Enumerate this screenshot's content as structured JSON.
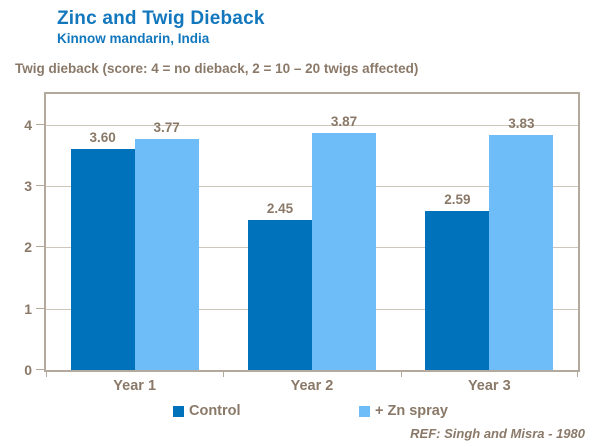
{
  "header": {
    "title": "Zinc and Twig Dieback",
    "subtitle": "Kinnow mandarin, India"
  },
  "axis_caption": "Twig dieback (score: 4 = no dieback, 2 = 10 – 20 twigs affected)",
  "footer": {
    "reference": "REF: Singh and Misra - 1980"
  },
  "colors": {
    "title_blue": "#1277BD",
    "control_bar": "#0072BC",
    "zn_spray_bar": "#6EBDF8",
    "text_taupe": "#8A7968",
    "gridline": "#CFC5BA",
    "plot_border": "#B3A99D",
    "background": "#FFFFFF"
  },
  "chart_data": {
    "type": "bar",
    "title": "Zinc and Twig Dieback",
    "subtitle": "Kinnow mandarin, India",
    "ylabel": "Twig dieback (score: 4 = no dieback, 2 = 10 – 20 twigs affected)",
    "xlabel": "",
    "categories": [
      "Year 1",
      "Year 2",
      "Year 3"
    ],
    "series": [
      {
        "name": "Control",
        "color": "#0072BC",
        "values": [
          3.6,
          2.45,
          2.59
        ]
      },
      {
        "name": "+ Zn spray",
        "color": "#6EBDF8",
        "values": [
          3.77,
          3.87,
          3.83
        ]
      }
    ],
    "value_labels": [
      [
        "3.60",
        "2.45",
        "2.59"
      ],
      [
        "3.77",
        "3.87",
        "3.83"
      ]
    ],
    "ylim": [
      0,
      4.5
    ],
    "yticks": [
      0,
      1,
      2,
      3,
      4
    ],
    "grid": true,
    "legend_position": "bottom",
    "annotation": "REF: Singh and Misra - 1980"
  }
}
